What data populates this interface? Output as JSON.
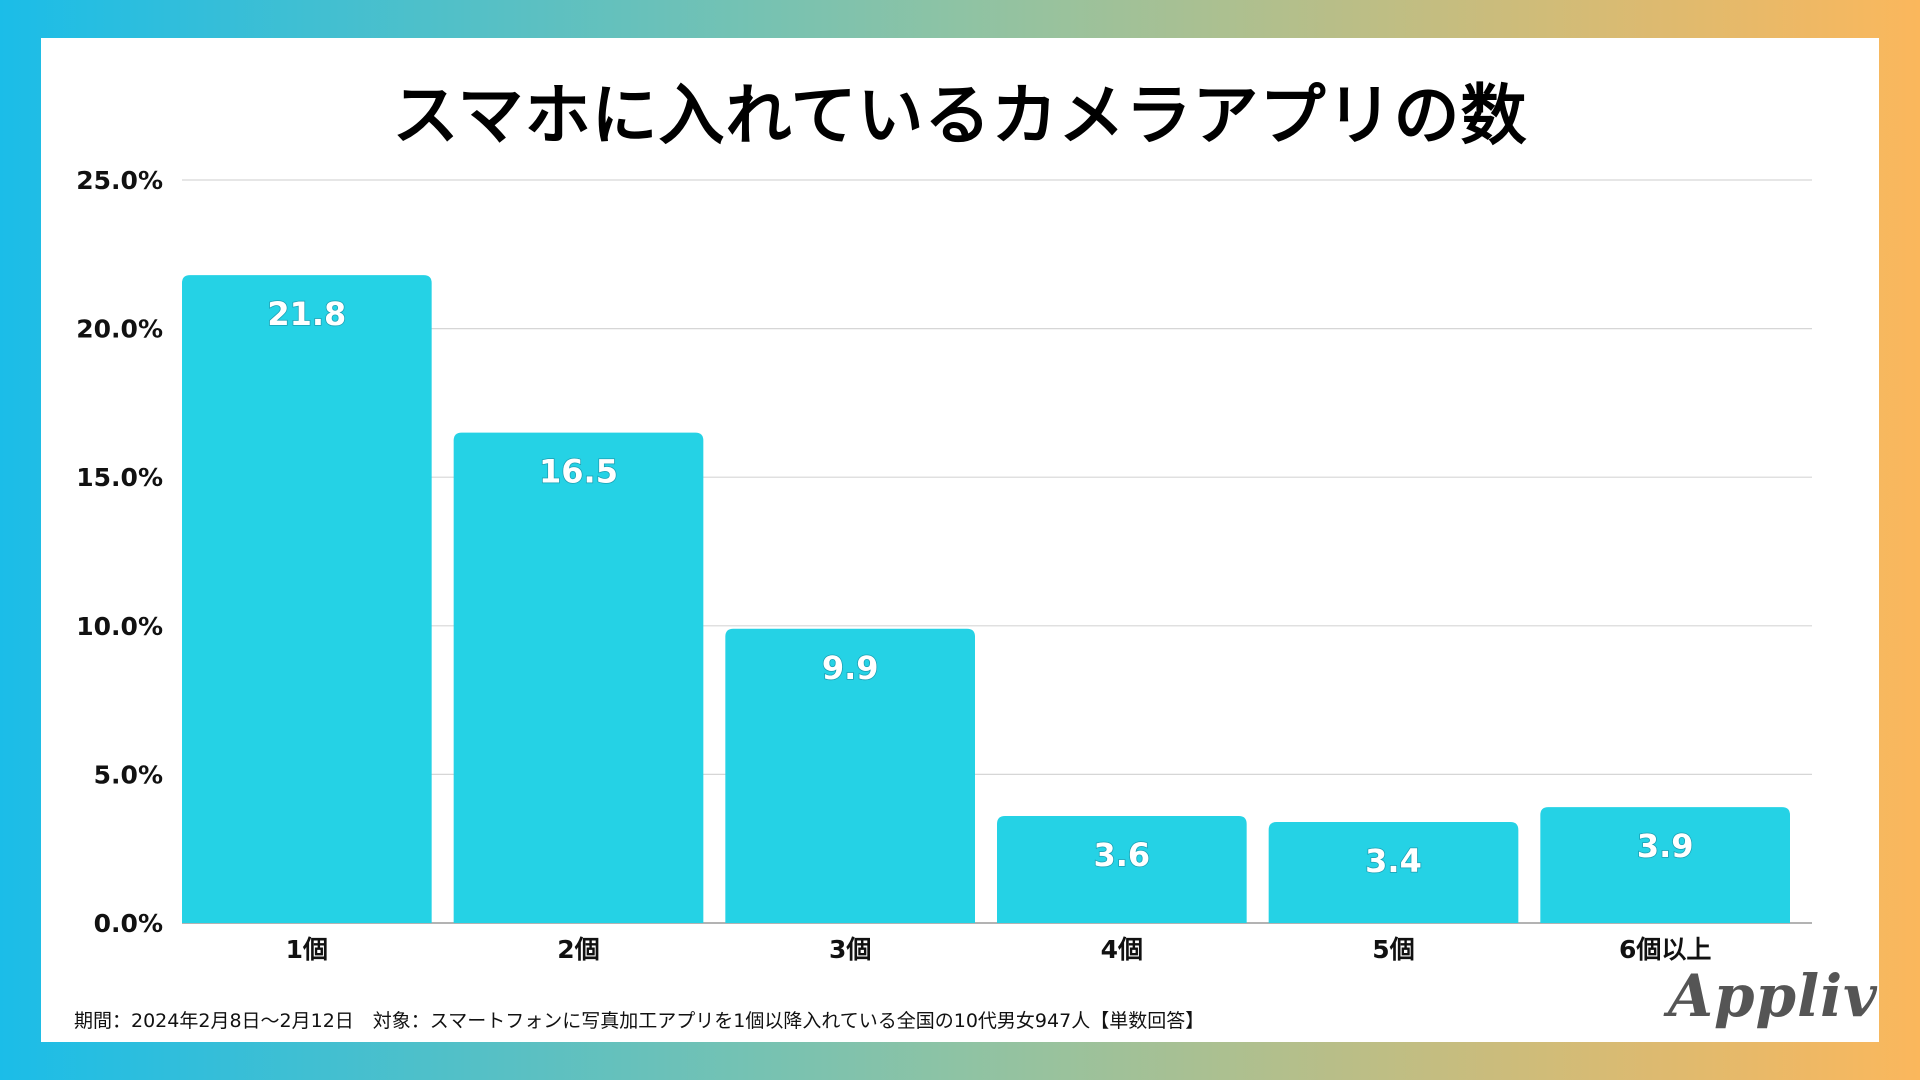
{
  "chart_data": {
    "type": "bar",
    "title": "スマホに入れているカメラアプリの数",
    "categories": [
      "1個",
      "2個",
      "3個",
      "4個",
      "5個",
      "6個以上"
    ],
    "values": [
      21.8,
      16.5,
      9.9,
      3.6,
      3.4,
      3.9
    ],
    "value_labels": [
      "21.8",
      "16.5",
      "9.9",
      "3.6",
      "3.4",
      "3.9"
    ],
    "y_ticks": [
      "0.0%",
      "5.0%",
      "10.0%",
      "15.0%",
      "20.0%",
      "25.0%"
    ],
    "ylim": [
      0,
      25
    ],
    "grid": true,
    "bar_color": "#25d2e5",
    "xlabel": "",
    "ylabel": ""
  },
  "footnote": "期間：2024年2月8日〜2月12日　対象：スマートフォンに写真加工アプリを1個以降入れている全国の10代男女947人【単数回答】",
  "logo": "Appliv"
}
